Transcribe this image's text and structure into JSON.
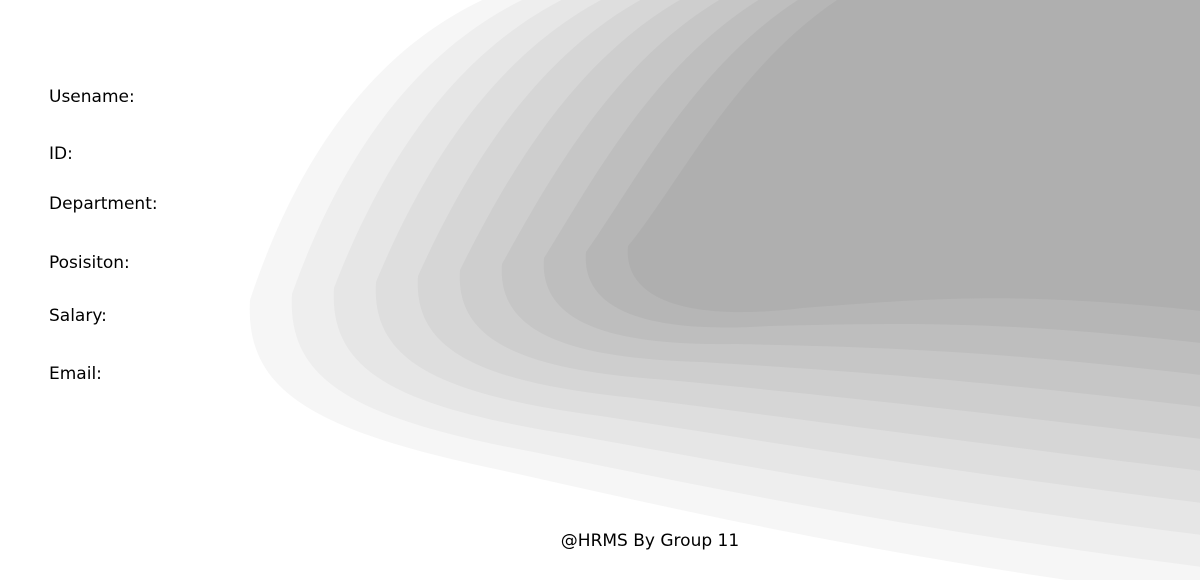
{
  "profile": {
    "fields": [
      {
        "label": "Usename:"
      },
      {
        "label": "ID:"
      },
      {
        "label": "Department:"
      },
      {
        "label": "Posisiton:"
      },
      {
        "label": "Salary:"
      },
      {
        "label": "Email:"
      }
    ]
  },
  "footer": {
    "credit": "@HRMS By Group 11"
  },
  "theme": {
    "background": "#ffffff",
    "wave_colors": [
      "#f6f6f6",
      "#eeeeee",
      "#e6e6e6",
      "#dedede",
      "#d6d6d6",
      "#cecece",
      "#c6c6c6",
      "#bebebe",
      "#b6b6b6",
      "#afafaf"
    ]
  }
}
